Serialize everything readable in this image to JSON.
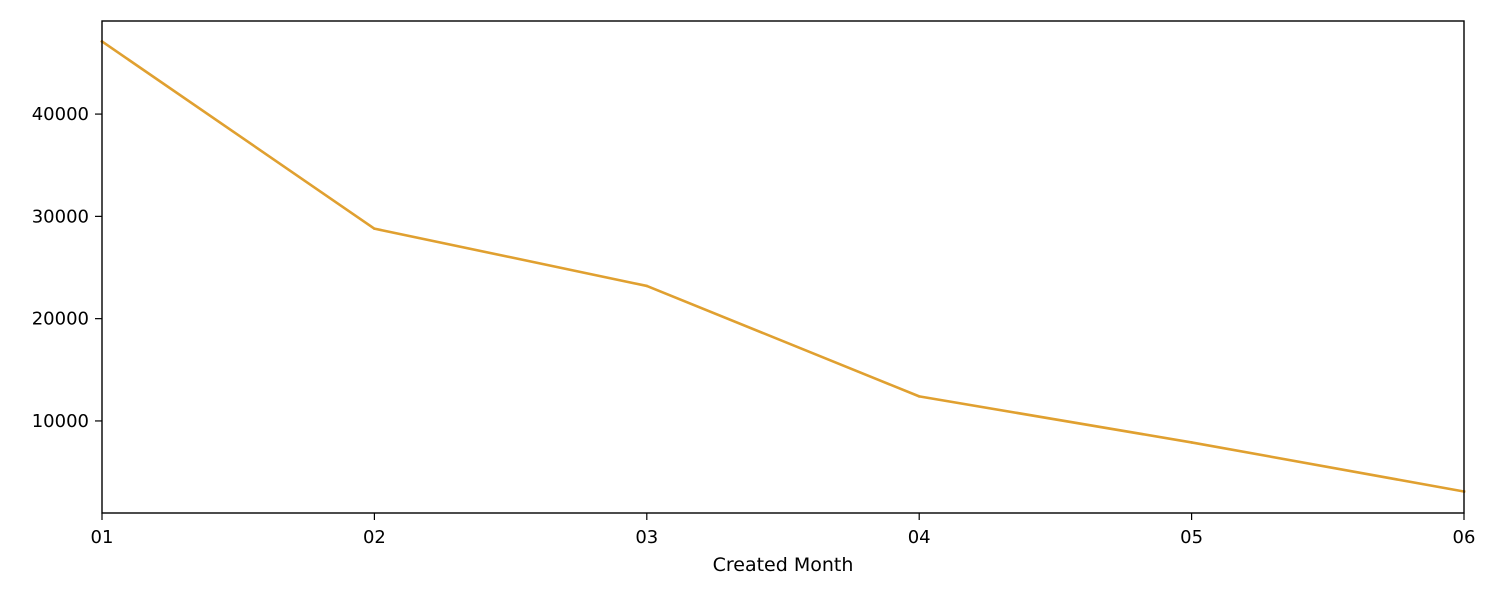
{
  "chart_data": {
    "type": "line",
    "title": "",
    "xlabel": "Created Month",
    "ylabel": "",
    "categories": [
      "01",
      "02",
      "03",
      "04",
      "05",
      "06"
    ],
    "series": [
      {
        "values": [
          47100,
          28800,
          23200,
          12400,
          7900,
          3100
        ],
        "color": "#e0a030"
      }
    ],
    "xlim": [
      "01",
      "06"
    ],
    "ylim": [
      1000,
      49100
    ],
    "yticks": [
      10000,
      20000,
      30000,
      40000
    ],
    "ytick_labels": [
      "10000",
      "20000",
      "30000",
      "40000"
    ],
    "grid": false,
    "legend": "none"
  }
}
